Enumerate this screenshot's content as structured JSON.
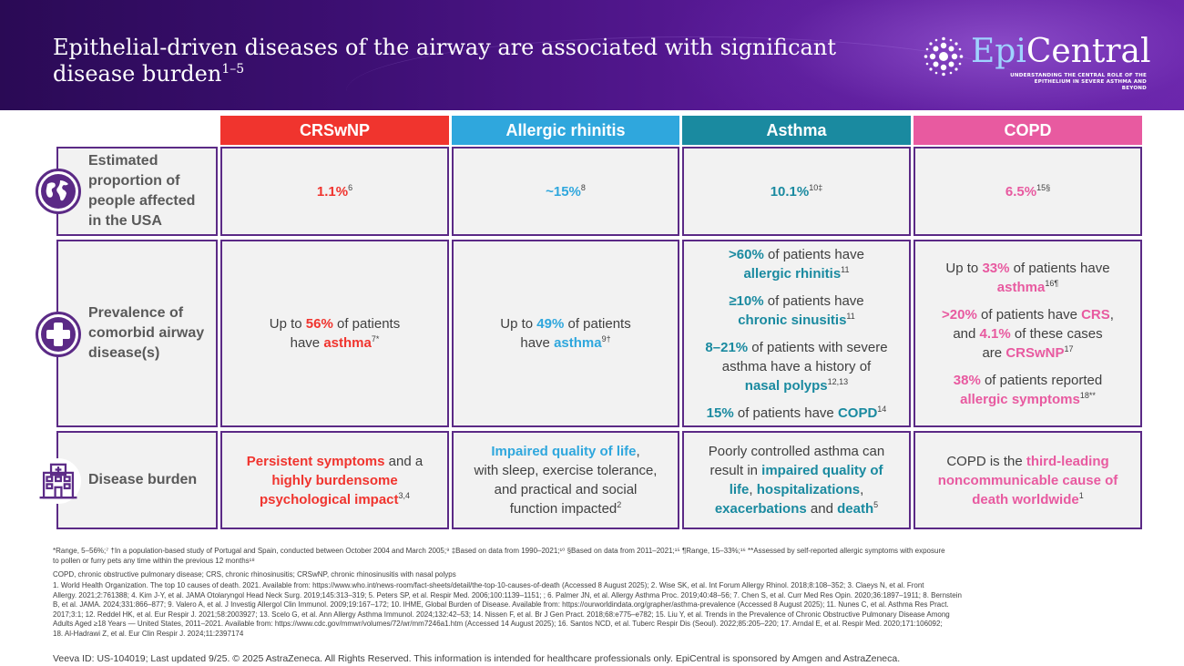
{
  "header": {
    "title_line1": "Epithelial-driven diseases of the airway are associated with significant",
    "title_line2": "disease burden",
    "title_refs": "1–5",
    "logo_epi": "Epi",
    "logo_central": "Central",
    "logo_tagline_1": "UNDERSTANDING THE CENTRAL ROLE OF THE",
    "logo_tagline_2": "EPITHELIUM IN SEVERE ASTHMA AND BEYOND"
  },
  "colors": {
    "crswnp": "#f0342e",
    "allergic_rhinitis": "#2fa7dd",
    "asthma": "#1a8aa0",
    "copd": "#e85aa0",
    "border": "#5b2a86"
  },
  "columns": [
    "CRSwNP",
    "Allergic rhinitis",
    "Asthma",
    "COPD"
  ],
  "rows": {
    "proportion": {
      "label_1": "Estimated",
      "label_2": "proportion of",
      "label_3": "people affected",
      "label_4": "in the USA",
      "icon": "globe-icon",
      "crswnp": "1.1%",
      "crswnp_ref": "6",
      "allergic_rhinitis": "~15%",
      "allergic_rhinitis_ref": "8",
      "asthma": "10.1%",
      "asthma_ref": "10‡",
      "copd": "6.5%",
      "copd_ref": "15§"
    },
    "comorbid": {
      "label_1": "Prevalence of",
      "label_2": "comorbid airway",
      "label_3": "disease(s)",
      "icon": "medical-cross-icon",
      "crswnp": {
        "pre": "Up to ",
        "pct": "56%",
        "mid": " of patients",
        "pre2": "have ",
        "hl": "asthma",
        "ref": "7*"
      },
      "allergic_rhinitis": {
        "pre": "Up to ",
        "pct": "49%",
        "mid": " of patients",
        "pre2": "have ",
        "hl": "asthma",
        "ref": "9†"
      },
      "asthma": [
        {
          "pct": ">60%",
          "text": " of patients have",
          "hl": "allergic rhinitis",
          "ref": "11"
        },
        {
          "pct": "≥10%",
          "text": " of patients have",
          "hl": "chronic sinusitis",
          "ref": "11"
        },
        {
          "pct": "8–21%",
          "text": " of patients with severe",
          "text2": "asthma have a history of",
          "hl": "nasal polyps",
          "ref": "12,13"
        },
        {
          "pct": "15%",
          "text": " of patients have ",
          "hl": "COPD",
          "ref": "14"
        }
      ],
      "copd": {
        "p1_pre": "Up to ",
        "p1_pct": "33%",
        "p1_text": " of patients have",
        "p1_hl": "asthma",
        "p1_ref": "16¶",
        "p2_pct": ">20%",
        "p2_text": " of patients have ",
        "p2_hl": "CRS",
        "p2_punct": ",",
        "p2_text2": "and ",
        "p2_pct2": "4.1%",
        "p2_text3": " of these cases",
        "p2_text4": "are ",
        "p2_hl2": "CRSwNP",
        "p2_ref": "17",
        "p3_pct": "38%",
        "p3_text": " of patients reported",
        "p3_hl": "allergic symptoms",
        "p3_ref": "18**"
      }
    },
    "burden": {
      "label_1": "Disease burden",
      "icon": "hospital-icon",
      "crswnp": {
        "hl1": "Persistent symptoms",
        "t1": " and a",
        "hl2": "highly burdensome",
        "hl3": "psychological impact",
        "ref": "3,4"
      },
      "allergic_rhinitis": {
        "hl1": "Impaired quality of life",
        "t1": ",",
        "t2": "with sleep, exercise tolerance,",
        "t3": "and practical and social",
        "t4": "function impacted",
        "ref": "2"
      },
      "asthma": {
        "t1": "Poorly controlled asthma can",
        "t2": "result in ",
        "hl1": "impaired quality of",
        "hl2": "life",
        "c1": ", ",
        "hl3": "hospitalizations",
        "c2": ",",
        "hl4": "exacerbations",
        "t3": " and ",
        "hl5": "death",
        "ref": "5"
      },
      "copd": {
        "t1": "COPD is the ",
        "hl1": "third-leading",
        "hl2": "noncommunicable cause of",
        "hl3": "death worldwide",
        "ref": "1"
      }
    }
  },
  "footnotes": {
    "line1": "*Range, 5–56%;⁷ †In a population-based study of Portugal and Spain, conducted between October 2004 and March 2005;⁹ ‡Based on data from 1990–2021;¹⁰ §Based on data from 2011–2021;¹⁵ ¶Range, 15–33%;¹⁶ **Assessed by self-reported allergic symptoms with exposure",
    "line2": "to pollen or furry pets any time within the previous 12 months¹⁸",
    "abbrev": "COPD, chronic obstructive pulmonary disease; CRS, chronic rhinosinusitis; CRSwNP, chronic rhinosinusitis with nasal polyps",
    "refs1": "1. World Health Organization. The top 10 causes of death. 2021. Available from: https://www.who.int/news-room/fact-sheets/detail/the-top-10-causes-of-death (Accessed 8 August 2025); 2. Wise SK, et al. Int Forum Allergy Rhinol. 2018;8:108–352; 3. Claeys N, et al. Front",
    "refs2": "Allergy. 2021;2:761388; 4. Kim J-Y, et al. JAMA Otolaryngol Head Neck Surg. 2019;145:313–319; 5. Peters SP, et al. Respir Med. 2006;100:1139–1151; ; 6. Palmer JN, et al. Allergy Asthma Proc. 2019;40:48–56; 7. Chen S, et al. Curr Med Res Opin. 2020;36:1897–1911; 8. Bernstein",
    "refs3": "B, et al. JAMA. 2024;331:866–877; 9. Valero A, et al. J Investig Allergol Clin Immunol. 2009;19:167–172; 10. IHME, Global Burden of Disease. Available from: https://ourworldindata.org/grapher/asthma-prevalence (Accessed 8 August 2025); 11. Nunes C, et al. Asthma Res Pract.",
    "refs4": "2017;3:1; 12. Reddel HK, et al. Eur Respir J. 2021;58:2003927; 13. Scelo G, et al. Ann Allergy Asthma Immunol. 2024;132:42–53; 14. Nissen F, et al. Br J Gen Pract. 2018;68:e775–e782; 15. Liu Y, et al. Trends in the Prevalence of Chronic Obstructive Pulmonary Disease Among",
    "refs5": "Adults Aged ≥18 Years — United States, 2011–2021. Available from: https://www.cdc.gov/mmwr/volumes/72/wr/mm7246a1.htm (Accessed 14 August 2025); 16. Santos NCD, et al. Tuberc Respir Dis (Seoul). 2022;85:205–220; 17. Arndal E, et al. Respir Med. 2020;171:106092;",
    "refs6": "18. Al-Hadrawi Z, et al. Eur Clin Respir J. 2024;11:2397174",
    "veeva": "Veeva ID: US-104019; Last updated 9/25. © 2025 AstraZeneca. All Rights Reserved. This information is intended for healthcare professionals only. EpiCentral is sponsored by Amgen and AstraZeneca."
  }
}
